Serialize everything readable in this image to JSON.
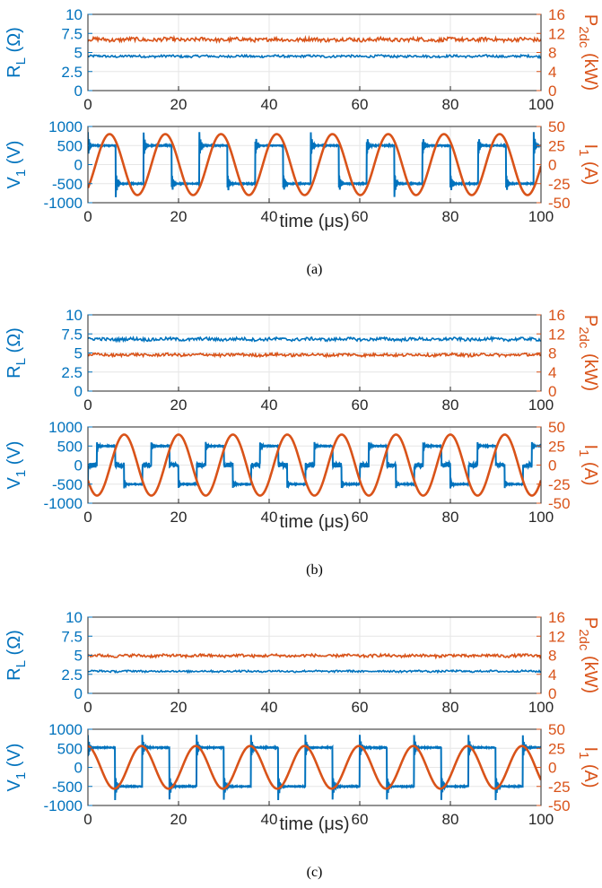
{
  "colors": {
    "left": "#0072bd",
    "right": "#d95319",
    "grid": "#e6e6e6",
    "frame": "#262626"
  },
  "panels": [
    {
      "caption": "(a)",
      "top": {
        "ylabel_left": "R_L (Ω)",
        "ylabel_right": "P_2dc (kW)",
        "left_ticks": [
          "0",
          "2.5",
          "5",
          "7.5",
          "10"
        ],
        "right_ticks": [
          "0",
          "4",
          "8",
          "12",
          "16"
        ]
      },
      "bottom": {
        "ylabel_left": "V_1 (V)",
        "ylabel_right": "I_1 (A)",
        "left_ticks": [
          "-1000",
          "-500",
          "0",
          "500",
          "1000"
        ],
        "right_ticks": [
          "-50",
          "-25",
          "0",
          "25",
          "50"
        ],
        "xlabel": "time (μs)"
      },
      "x_ticks": [
        "0",
        "20",
        "40",
        "60",
        "80",
        "100"
      ]
    },
    {
      "caption": "(b)",
      "top": {
        "ylabel_left": "R_L (Ω)",
        "ylabel_right": "P_2dc (kW)",
        "left_ticks": [
          "0",
          "2.5",
          "5",
          "7.5",
          "10"
        ],
        "right_ticks": [
          "0",
          "4",
          "8",
          "12",
          "16"
        ]
      },
      "bottom": {
        "ylabel_left": "V_1 (V)",
        "ylabel_right": "I_1 (A)",
        "left_ticks": [
          "-1000",
          "-500",
          "0",
          "500",
          "1000"
        ],
        "right_ticks": [
          "-50",
          "-25",
          "0",
          "25",
          "50"
        ],
        "xlabel": "time (μs)"
      },
      "x_ticks": [
        "0",
        "20",
        "40",
        "60",
        "80",
        "100"
      ]
    },
    {
      "caption": "(c)",
      "top": {
        "ylabel_left": "R_L (Ω)",
        "ylabel_right": "P_2dc (kW)",
        "left_ticks": [
          "0",
          "2.5",
          "5",
          "7.5",
          "10"
        ],
        "right_ticks": [
          "0",
          "4",
          "8",
          "12",
          "16"
        ]
      },
      "bottom": {
        "ylabel_left": "V_1 (V)",
        "ylabel_right": "I_1 (A)",
        "left_ticks": [
          "-1000",
          "-500",
          "0",
          "500",
          "1000"
        ],
        "right_ticks": [
          "-50",
          "-25",
          "0",
          "25",
          "50"
        ],
        "xlabel": "time (μs)"
      },
      "x_ticks": [
        "0",
        "20",
        "40",
        "60",
        "80",
        "100"
      ]
    }
  ],
  "chart_data": [
    {
      "panel": "(a)",
      "type": "line",
      "x_range": [
        0,
        100
      ],
      "grid": true,
      "top": {
        "left_ylim": [
          0,
          10
        ],
        "right_ylim": [
          0,
          16
        ],
        "series": [
          {
            "axis": "left",
            "color": "#0072bd",
            "mean": 4.5,
            "noise": 0.15
          },
          {
            "axis": "right",
            "color": "#d95319",
            "mean": 10.7,
            "noise": 0.4
          }
        ]
      },
      "bottom": {
        "left_ylim": [
          -1000,
          1000
        ],
        "right_ylim": [
          -50,
          50
        ],
        "period": 12.3,
        "series": [
          {
            "axis": "left",
            "color": "#0072bd",
            "shape": "square",
            "amplitude": 500,
            "low_level": -500,
            "spike": 850,
            "phase": 0.0
          },
          {
            "axis": "right",
            "color": "#d95319",
            "shape": "sine",
            "amplitude": 40,
            "phase": 1.7
          }
        ]
      }
    },
    {
      "panel": "(b)",
      "type": "line",
      "x_range": [
        0,
        100
      ],
      "grid": true,
      "top": {
        "left_ylim": [
          0,
          10
        ],
        "right_ylim": [
          0,
          16
        ],
        "series": [
          {
            "axis": "left",
            "color": "#0072bd",
            "mean": 6.8,
            "noise": 0.2
          },
          {
            "axis": "right",
            "color": "#d95319",
            "mean": 7.6,
            "noise": 0.3
          }
        ]
      },
      "bottom": {
        "left_ylim": [
          -1000,
          1000
        ],
        "right_ylim": [
          -50,
          50
        ],
        "period": 12.0,
        "series": [
          {
            "axis": "left",
            "color": "#0072bd",
            "shape": "stepped",
            "amplitude": 500,
            "step": 120,
            "spike": 650,
            "phase": 1.0
          },
          {
            "axis": "right",
            "color": "#d95319",
            "shape": "sine",
            "amplitude": 40,
            "phase": 5.0
          }
        ]
      }
    },
    {
      "panel": "(c)",
      "type": "line",
      "x_range": [
        0,
        100
      ],
      "grid": true,
      "top": {
        "left_ylim": [
          0,
          10
        ],
        "right_ylim": [
          0,
          16
        ],
        "series": [
          {
            "axis": "left",
            "color": "#0072bd",
            "mean": 2.9,
            "noise": 0.12
          },
          {
            "axis": "right",
            "color": "#d95319",
            "mean": 7.9,
            "noise": 0.3
          }
        ]
      },
      "bottom": {
        "left_ylim": [
          -1000,
          1000
        ],
        "right_ylim": [
          -50,
          50
        ],
        "period": 12.0,
        "series": [
          {
            "axis": "left",
            "color": "#0072bd",
            "shape": "square",
            "amplitude": 520,
            "low_level": -500,
            "spike": 850,
            "phase": 0.0
          },
          {
            "axis": "right",
            "color": "#d95319",
            "shape": "sine",
            "amplitude": 28,
            "phase": 8.8
          }
        ]
      }
    }
  ]
}
